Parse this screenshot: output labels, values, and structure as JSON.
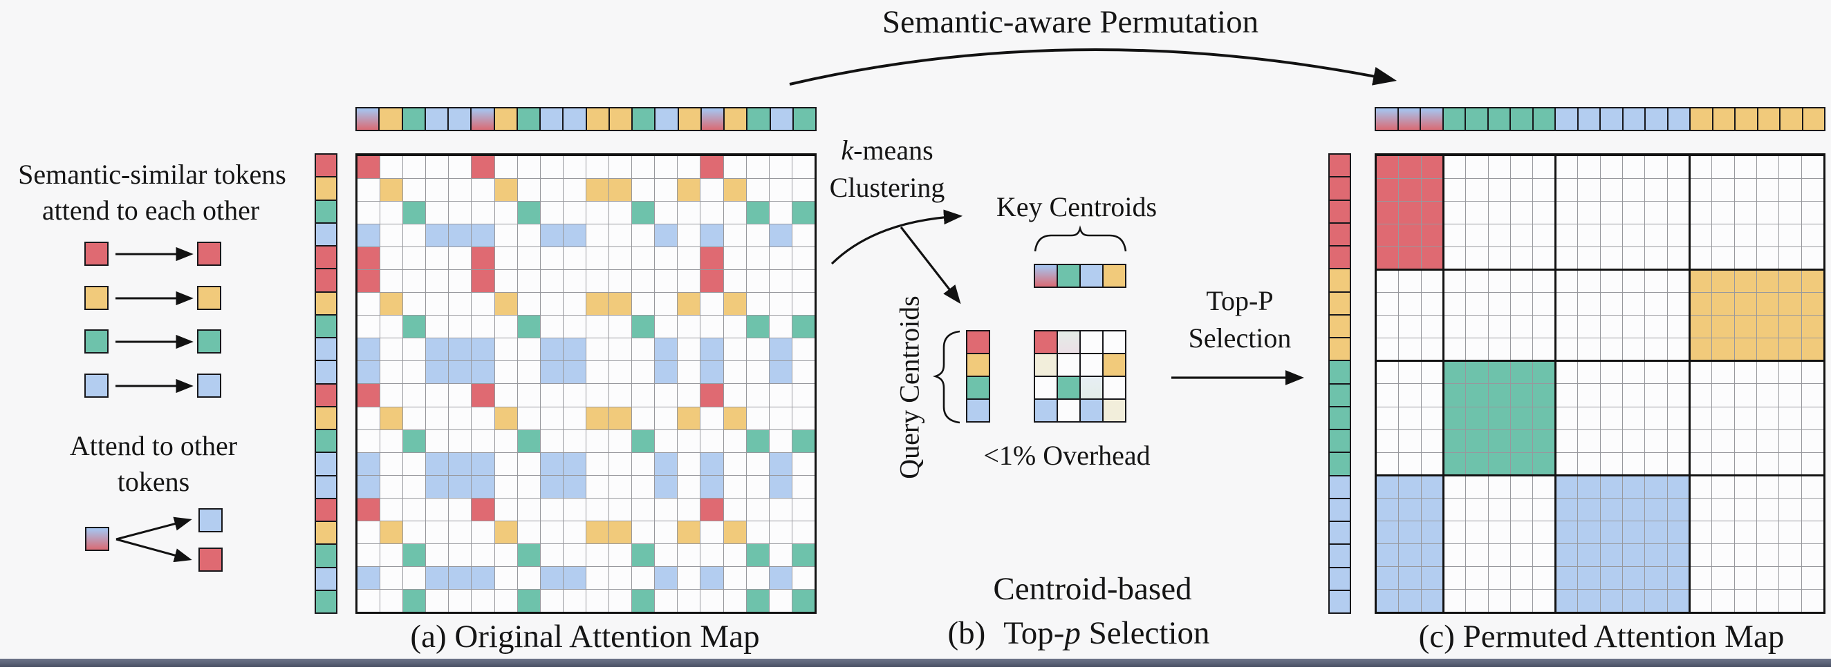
{
  "palette": {
    "background": "#f7f7f8",
    "red": "#df6a72",
    "yellow": "#f1ca7b",
    "green": "#6ec2ab",
    "blue": "#b3cdf0",
    "gradient_top": "#a7c2ec",
    "gradient_bottom": "#d7707b",
    "grid_line_gray": "#97989d",
    "stroke_black": "#17171b",
    "bottom_bar": "#5c6478"
  },
  "title": "Semantic-aware Permutation",
  "legend": {
    "similar_line1": "Semantic-similar tokens",
    "similar_line2": "attend to each other",
    "pairs": [
      {
        "from": "red",
        "to": "red"
      },
      {
        "from": "yellow",
        "to": "yellow"
      },
      {
        "from": "green",
        "to": "green"
      },
      {
        "from": "blue",
        "to": "blue"
      }
    ],
    "other_line1": "Attend to other",
    "other_line2": "tokens",
    "fork": {
      "from": "gradient",
      "to_upper": "blue",
      "to_lower": "red"
    }
  },
  "panel_a": {
    "caption": "(a) Original Attention Map",
    "top_tokens": [
      "gradient",
      "yellow",
      "green",
      "blue",
      "blue",
      "gradient",
      "yellow",
      "green",
      "blue",
      "blue",
      "yellow",
      "yellow",
      "green",
      "blue",
      "yellow",
      "gradient",
      "yellow",
      "green",
      "blue",
      "green"
    ],
    "left_tokens": [
      "red",
      "yellow",
      "green",
      "blue",
      "red",
      "red",
      "yellow",
      "green",
      "blue",
      "blue",
      "red",
      "yellow",
      "green",
      "blue",
      "blue",
      "red",
      "yellow",
      "green",
      "blue",
      "green"
    ],
    "attend_rule": {
      "red": [
        "gradient"
      ],
      "yellow": [
        "yellow"
      ],
      "green": [
        "green"
      ],
      "blue": [
        "blue",
        "gradient"
      ]
    }
  },
  "center": {
    "kmeans_k": "k",
    "kmeans_rest": "-means",
    "kmeans_line2": "Clustering",
    "key_centroids_label": "Key Centroids",
    "query_centroids_label": "Query Centroids",
    "key_centroids": [
      "gradient",
      "green",
      "blue",
      "yellow"
    ],
    "query_centroids": [
      "red",
      "yellow",
      "green",
      "blue"
    ],
    "mini_grid": [
      [
        "red",
        "tint_mint",
        "white",
        "white"
      ],
      [
        "tint_cream",
        "white",
        "white",
        "yellow"
      ],
      [
        "white",
        "green",
        "tint_teal",
        "white"
      ],
      [
        "blue",
        "white",
        "blue",
        "tint_cream"
      ]
    ],
    "overhead_label": "<1% Overhead",
    "topp_line1": "Top-P",
    "topp_line2": "Selection",
    "caption_line1": "Centroid-based",
    "caption_b_prefix": "(b)",
    "caption_b_top": "Top-",
    "caption_b_p": "p",
    "caption_b_rest": " Selection"
  },
  "panel_c": {
    "caption": "(c) Permuted Attention Map",
    "top_tokens": [
      "gradient",
      "gradient",
      "gradient",
      "green",
      "green",
      "green",
      "green",
      "green",
      "blue",
      "blue",
      "blue",
      "blue",
      "blue",
      "blue",
      "yellow",
      "yellow",
      "yellow",
      "yellow",
      "yellow",
      "yellow"
    ],
    "left_tokens": [
      "red",
      "red",
      "red",
      "red",
      "red",
      "yellow",
      "yellow",
      "yellow",
      "yellow",
      "green",
      "green",
      "green",
      "green",
      "green",
      "blue",
      "blue",
      "blue",
      "blue",
      "blue",
      "blue"
    ],
    "blocks": [
      {
        "row": 0,
        "col": 0,
        "rows": 5,
        "cols": 3,
        "color": "red"
      },
      {
        "row": 5,
        "col": 14,
        "rows": 4,
        "cols": 6,
        "color": "yellow"
      },
      {
        "row": 9,
        "col": 3,
        "rows": 5,
        "cols": 5,
        "color": "green"
      },
      {
        "row": 14,
        "col": 0,
        "rows": 6,
        "cols": 3,
        "color": "blue"
      },
      {
        "row": 14,
        "col": 8,
        "rows": 6,
        "cols": 6,
        "color": "blue"
      }
    ],
    "row_dividers": [
      5,
      9,
      14
    ],
    "col_dividers": [
      3,
      8,
      14
    ]
  }
}
